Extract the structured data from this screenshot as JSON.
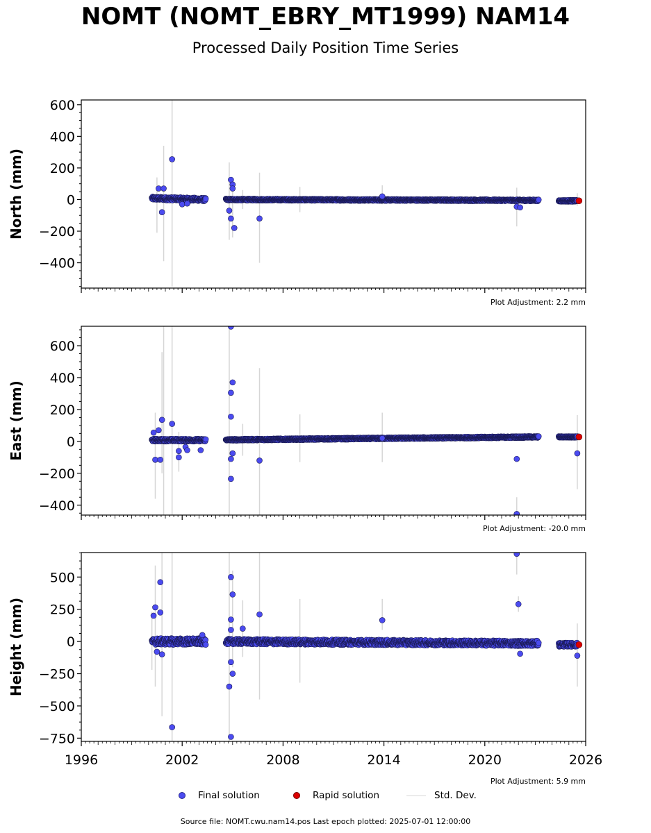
{
  "title": "NOMT (NOMT_EBRY_MT1999) NAM14",
  "subtitle": "Processed Daily Position Time Series",
  "footer": "Source file: NOMT.cwu.nam14.pos  Last epoch plotted: 2025-07-01 12:00:00",
  "legend": {
    "final": "Final solution",
    "rapid": "Rapid solution",
    "stddev": "Std. Dev."
  },
  "colors": {
    "final": "#4b4bf0",
    "rapid": "#dd0000",
    "stddev": "#d6d6d6"
  },
  "chart_data": [
    {
      "type": "scatter",
      "ylabel": "North (mm)",
      "adjustment": "Plot Adjustment: 2.2 mm",
      "xlim": [
        1996,
        2026
      ],
      "ylim": [
        -560,
        630
      ],
      "yticks": [
        -400,
        -200,
        0,
        200,
        400,
        600
      ],
      "ytick_labels": [
        "−400",
        "−200",
        "0",
        "200",
        "400",
        "600"
      ],
      "dense_segments": [
        {
          "x0": 2000.2,
          "x1": 2003.4,
          "y0": 8,
          "y1": 0,
          "spread": 10
        },
        {
          "x0": 2004.6,
          "x1": 2023.2,
          "y0": 0,
          "y1": -5,
          "spread": 5
        },
        {
          "x0": 2024.4,
          "x1": 2025.5,
          "y0": -8,
          "y1": -8,
          "spread": 5
        }
      ],
      "outliers": [
        [
          2000.6,
          70
        ],
        [
          2000.9,
          70
        ],
        [
          2000.8,
          -80
        ],
        [
          2001.4,
          255
        ],
        [
          2002.0,
          -30
        ],
        [
          2002.3,
          -25
        ],
        [
          2004.9,
          125
        ],
        [
          2005.0,
          95
        ],
        [
          2005.0,
          70
        ],
        [
          2004.9,
          -120
        ],
        [
          2005.1,
          -180
        ],
        [
          2004.8,
          -70
        ],
        [
          2006.6,
          -120
        ],
        [
          2021.9,
          -45
        ],
        [
          2022.1,
          -50
        ],
        [
          2013.9,
          20
        ]
      ],
      "errorbars": [
        [
          2000.5,
          -210,
          140
        ],
        [
          2000.9,
          -390,
          340
        ],
        [
          2001.4,
          -550,
          630
        ],
        [
          2004.8,
          -255,
          235
        ],
        [
          2005.0,
          -240,
          70
        ],
        [
          2005.6,
          -60,
          60
        ],
        [
          2006.6,
          -400,
          170
        ],
        [
          2009.0,
          -80,
          80
        ],
        [
          2013.9,
          -30,
          90
        ],
        [
          2021.9,
          -170,
          75
        ],
        [
          2025.5,
          -40,
          40
        ]
      ],
      "rapid": [
        [
          2025.6,
          -8
        ]
      ],
      "series": [
        {
          "name": "Final solution"
        },
        {
          "name": "Rapid solution"
        }
      ]
    },
    {
      "type": "scatter",
      "ylabel": "East (mm)",
      "adjustment": "Plot Adjustment: -20.0 mm",
      "xlim": [
        1996,
        2026
      ],
      "ylim": [
        -462,
        722
      ],
      "yticks": [
        -400,
        -200,
        0,
        200,
        400,
        600
      ],
      "ytick_labels": [
        "−400",
        "−200",
        "0",
        "200",
        "400",
        "600"
      ],
      "dense_segments": [
        {
          "x0": 2000.2,
          "x1": 2003.4,
          "y0": 8,
          "y1": 8,
          "spread": 8
        },
        {
          "x0": 2004.6,
          "x1": 2023.2,
          "y0": 10,
          "y1": 28,
          "spread": 5
        },
        {
          "x0": 2024.4,
          "x1": 2025.5,
          "y0": 28,
          "y1": 28,
          "spread": 4
        }
      ],
      "outliers": [
        [
          2000.3,
          55
        ],
        [
          2000.4,
          -115
        ],
        [
          2000.7,
          -115
        ],
        [
          2000.8,
          135
        ],
        [
          2000.6,
          70
        ],
        [
          2001.4,
          110
        ],
        [
          2001.8,
          -60
        ],
        [
          2001.8,
          -100
        ],
        [
          2002.2,
          -35
        ],
        [
          2002.3,
          -55
        ],
        [
          2003.1,
          -55
        ],
        [
          2004.9,
          720
        ],
        [
          2005.0,
          370
        ],
        [
          2004.9,
          305
        ],
        [
          2004.9,
          155
        ],
        [
          2004.9,
          -235
        ],
        [
          2004.9,
          -110
        ],
        [
          2005.0,
          -75
        ],
        [
          2006.6,
          -120
        ],
        [
          2013.9,
          20
        ],
        [
          2021.9,
          -110
        ],
        [
          2021.9,
          -455
        ],
        [
          2025.5,
          -75
        ]
      ],
      "errorbars": [
        [
          2000.4,
          -360,
          180
        ],
        [
          2000.9,
          -462,
          722
        ],
        [
          2000.8,
          -200,
          560
        ],
        [
          2001.4,
          -462,
          722
        ],
        [
          2001.8,
          -190,
          60
        ],
        [
          2004.8,
          -462,
          722
        ],
        [
          2005.6,
          -90,
          110
        ],
        [
          2006.6,
          -462,
          460
        ],
        [
          2009.0,
          -130,
          170
        ],
        [
          2013.9,
          -130,
          180
        ],
        [
          2021.9,
          -462,
          -350
        ],
        [
          2025.5,
          -300,
          165
        ]
      ],
      "rapid": [
        [
          2025.6,
          28
        ]
      ],
      "series": [
        {
          "name": "Final solution"
        },
        {
          "name": "Rapid solution"
        }
      ]
    },
    {
      "type": "scatter",
      "ylabel": "Height (mm)",
      "adjustment": "Plot Adjustment: 5.9 mm",
      "xlim": [
        1996,
        2026
      ],
      "ylim": [
        -775,
        690
      ],
      "yticks": [
        -750,
        -500,
        -250,
        0,
        250,
        500
      ],
      "ytick_labels": [
        "−750",
        "−500",
        "−250",
        "0",
        "250",
        "500"
      ],
      "xticks": [
        1996,
        2002,
        2008,
        2014,
        2020,
        2026
      ],
      "xtick_labels": [
        "1996",
        "2002",
        "2008",
        "2014",
        "2020",
        "2026"
      ],
      "dense_segments": [
        {
          "x0": 2000.2,
          "x1": 2003.4,
          "y0": 0,
          "y1": 0,
          "spread": 25
        },
        {
          "x0": 2004.6,
          "x1": 2023.2,
          "y0": 0,
          "y1": -15,
          "spread": 20
        },
        {
          "x0": 2024.4,
          "x1": 2025.5,
          "y0": -25,
          "y1": -25,
          "spread": 15
        }
      ],
      "outliers": [
        [
          2000.3,
          200
        ],
        [
          2000.4,
          265
        ],
        [
          2000.7,
          225
        ],
        [
          2000.7,
          460
        ],
        [
          2000.8,
          -100
        ],
        [
          2000.5,
          -80
        ],
        [
          2001.4,
          -665
        ],
        [
          2003.2,
          50
        ],
        [
          2004.9,
          500
        ],
        [
          2005.0,
          365
        ],
        [
          2004.9,
          170
        ],
        [
          2004.9,
          90
        ],
        [
          2004.8,
          -350
        ],
        [
          2004.9,
          -740
        ],
        [
          2005.0,
          -250
        ],
        [
          2004.9,
          -160
        ],
        [
          2005.6,
          100
        ],
        [
          2006.6,
          210
        ],
        [
          2013.9,
          165
        ],
        [
          2021.9,
          680
        ],
        [
          2022.0,
          290
        ],
        [
          2022.1,
          -95
        ],
        [
          2025.5,
          -110
        ]
      ],
      "errorbars": [
        [
          2000.2,
          -220,
          230
        ],
        [
          2000.4,
          -350,
          590
        ],
        [
          2000.8,
          -580,
          690
        ],
        [
          2001.4,
          -775,
          690
        ],
        [
          2004.8,
          -775,
          690
        ],
        [
          2005.0,
          -200,
          550
        ],
        [
          2005.6,
          -120,
          320
        ],
        [
          2006.6,
          -450,
          690
        ],
        [
          2009.0,
          -320,
          330
        ],
        [
          2013.9,
          90,
          330
        ],
        [
          2021.9,
          520,
          690
        ],
        [
          2022.0,
          230,
          350
        ],
        [
          2025.5,
          -350,
          140
        ]
      ],
      "rapid": [
        [
          2025.6,
          -25
        ]
      ],
      "series": [
        {
          "name": "Final solution"
        },
        {
          "name": "Rapid solution"
        }
      ]
    }
  ]
}
